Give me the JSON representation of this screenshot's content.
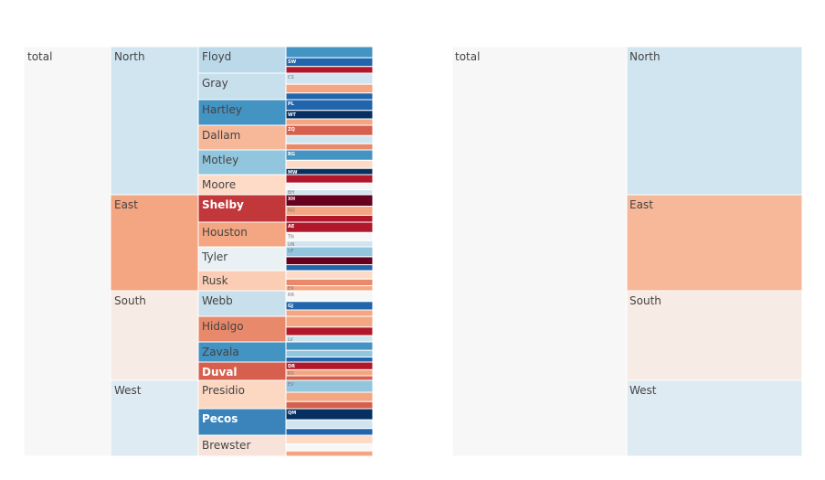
{
  "chart_data": [
    {
      "type": "icicle",
      "levels_shown": 4,
      "root": {
        "label": "total",
        "color": "#f7f7f7",
        "children": [
          {
            "label": "North",
            "color": "#d1e5f0",
            "label_color": "#444444",
            "children": [
              {
                "label": "Floyd",
                "color": "#bcd9ea",
                "label_color": "#444444",
                "leaves": [
                  {
                    "label": "",
                    "color": "#4393c3"
                  },
                  {
                    "label": "SW",
                    "color": "#2166ac"
                  },
                  {
                    "label": "",
                    "color": "#b2182b"
                  }
                ]
              },
              {
                "label": "Gray",
                "color": "#c8dfec",
                "label_color": "#444444",
                "leaves": [
                  {
                    "label": "CS",
                    "color": "#d1e5f0"
                  },
                  {
                    "label": "",
                    "color": "#f4a582"
                  },
                  {
                    "label": "",
                    "color": "#2166ac"
                  }
                ]
              },
              {
                "label": "Hartley",
                "color": "#4393c3",
                "label_color": "#444444",
                "leaves": [
                  {
                    "label": "PL",
                    "color": "#2166ac"
                  },
                  {
                    "label": "WT",
                    "color": "#053061"
                  },
                  {
                    "label": "",
                    "color": "#f4a582"
                  }
                ]
              },
              {
                "label": "Dallam",
                "color": "#f7b799",
                "label_color": "#444444",
                "leaves": [
                  {
                    "label": "ZQ",
                    "color": "#d6604d"
                  },
                  {
                    "label": "",
                    "color": "#d1e5f0"
                  },
                  {
                    "label": "",
                    "color": "#e8896b"
                  }
                ]
              },
              {
                "label": "Motley",
                "color": "#92c5de",
                "label_color": "#444444",
                "leaves": [
                  {
                    "label": "RG",
                    "color": "#4393c3"
                  },
                  {
                    "label": "",
                    "color": "#fddbc7"
                  },
                  {
                    "label": "MW",
                    "color": "#053061"
                  }
                ]
              },
              {
                "label": "Moore",
                "color": "#fddbc7",
                "label_color": "#444444",
                "leaves": [
                  {
                    "label": "",
                    "color": "#b2182b"
                  },
                  {
                    "label": "",
                    "color": "#f7f7f7"
                  },
                  {
                    "label": "BH",
                    "color": "#d1e5f0"
                  }
                ]
              }
            ]
          },
          {
            "label": "East",
            "color": "#f4a582",
            "label_color": "#444444",
            "children": [
              {
                "label": "Shelby",
                "color": "#c1373a",
                "label_color": "#ffffff",
                "leaves": [
                  {
                    "label": "XH",
                    "color": "#67001f"
                  },
                  {
                    "label": "NQ",
                    "color": "#f4a582"
                  },
                  {
                    "label": "",
                    "color": "#b2182b"
                  }
                ]
              },
              {
                "label": "Houston",
                "color": "#f4a582",
                "label_color": "#444444",
                "leaves": [
                  {
                    "label": "AE",
                    "color": "#b2182b"
                  },
                  {
                    "label": "TN",
                    "color": "#f7f7f7"
                  },
                  {
                    "label": "UN",
                    "color": "#d1e5f0"
                  }
                ]
              },
              {
                "label": "Tyler",
                "color": "#e9f1f5",
                "label_color": "#444444",
                "leaves": [
                  {
                    "label": "UF",
                    "color": "#92c5de"
                  },
                  {
                    "label": "",
                    "color": "#67001f"
                  },
                  {
                    "label": "",
                    "color": "#2166ac"
                  }
                ]
              },
              {
                "label": "Rusk",
                "color": "#fbcdb4",
                "label_color": "#444444",
                "leaves": [
                  {
                    "label": "",
                    "color": "#fddbc7"
                  },
                  {
                    "label": "",
                    "color": "#e8896b"
                  },
                  {
                    "label": "EX",
                    "color": "#f4a582"
                  }
                ]
              }
            ]
          },
          {
            "label": "South",
            "color": "#f7ebe6",
            "label_color": "#444444",
            "children": [
              {
                "label": "Webb",
                "color": "#c8dfec",
                "label_color": "#444444",
                "leaves": [
                  {
                    "label": "RR",
                    "color": "#f7f7f7"
                  },
                  {
                    "label": "GJ",
                    "color": "#2166ac"
                  },
                  {
                    "label": "",
                    "color": "#f4a582"
                  }
                ]
              },
              {
                "label": "Hidalgo",
                "color": "#e8896b",
                "label_color": "#444444",
                "leaves": [
                  {
                    "label": "",
                    "color": "#f4a582"
                  },
                  {
                    "label": "",
                    "color": "#b2182b"
                  },
                  {
                    "label": "LV",
                    "color": "#d1e5f0"
                  }
                ]
              },
              {
                "label": "Zavala",
                "color": "#4393c3",
                "label_color": "#444444",
                "leaves": [
                  {
                    "label": "",
                    "color": "#4393c3"
                  },
                  {
                    "label": "",
                    "color": "#92c5de"
                  },
                  {
                    "label": "",
                    "color": "#2166ac"
                  }
                ]
              },
              {
                "label": "Duval",
                "color": "#d6604d",
                "label_color": "#ffffff",
                "leaves": [
                  {
                    "label": "DR",
                    "color": "#b2182b"
                  },
                  {
                    "label": "RS",
                    "color": "#f4a582"
                  },
                  {
                    "label": "",
                    "color": "#d6604d"
                  }
                ]
              }
            ]
          },
          {
            "label": "West",
            "color": "#deebf2",
            "label_color": "#444444",
            "children": [
              {
                "label": "Presidio",
                "color": "#fcd7c1",
                "label_color": "#444444",
                "leaves": [
                  {
                    "label": "EV",
                    "color": "#92c5de"
                  },
                  {
                    "label": "",
                    "color": "#f4a582"
                  },
                  {
                    "label": "",
                    "color": "#d6604d"
                  }
                ]
              },
              {
                "label": "Pecos",
                "color": "#3a84bb",
                "label_color": "#ffffff",
                "leaves": [
                  {
                    "label": "QM",
                    "color": "#053061"
                  },
                  {
                    "label": "",
                    "color": "#d1e5f0"
                  },
                  {
                    "label": "",
                    "color": "#2166ac"
                  }
                ]
              },
              {
                "label": "Brewster",
                "color": "#f8e3da",
                "label_color": "#444444",
                "leaves": [
                  {
                    "label": "",
                    "color": "#fddbc7"
                  },
                  {
                    "label": "",
                    "color": "#f7f7f7"
                  },
                  {
                    "label": "",
                    "color": "#f4a582"
                  }
                ]
              }
            ]
          }
        ]
      }
    },
    {
      "type": "icicle",
      "levels_shown": 2,
      "root": {
        "label": "total",
        "color": "#f7f7f7",
        "children": [
          {
            "label": "North",
            "color": "#d1e5f0",
            "label_color": "#444444"
          },
          {
            "label": "East",
            "color": "#f7b799",
            "label_color": "#444444"
          },
          {
            "label": "South",
            "color": "#f7ebe6",
            "label_color": "#444444"
          },
          {
            "label": "West",
            "color": "#deebf2",
            "label_color": "#444444"
          }
        ]
      }
    }
  ]
}
